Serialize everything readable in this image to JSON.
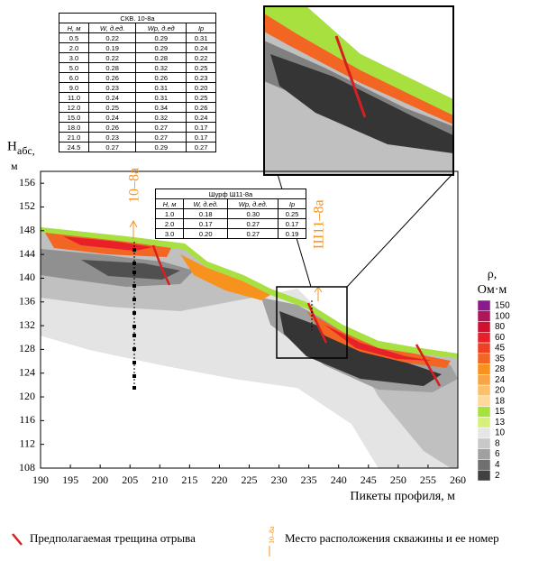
{
  "chart_data": {
    "type": "contour",
    "y_label": "H",
    "y_label_sub": "абс,",
    "y_label_unit": "м",
    "x_label": "Пикеты профиля, м",
    "xlim": [
      190,
      260
    ],
    "xticks": [
      190,
      195,
      200,
      205,
      210,
      215,
      220,
      225,
      230,
      235,
      240,
      245,
      250,
      255,
      260
    ],
    "ylim": [
      108,
      158
    ],
    "yticks": [
      108,
      112,
      116,
      120,
      124,
      128,
      132,
      136,
      140,
      144,
      148,
      152,
      156
    ],
    "colorbar": {
      "title": "ρ,",
      "unit": "Ом·м",
      "levels": [
        150,
        100,
        80,
        60,
        45,
        35,
        28,
        24,
        20,
        18,
        15,
        13,
        10,
        8,
        6,
        4,
        2
      ],
      "colors": [
        "#8b1a8b",
        "#b0155a",
        "#d01030",
        "#e8202a",
        "#ef4023",
        "#f26522",
        "#f7921e",
        "#f9a545",
        "#fbc068",
        "#fdd99a",
        "#a8e040",
        "#d6f07a",
        "#e6e6e6",
        "#c8c8c8",
        "#a0a0a0",
        "#707070",
        "#404040"
      ]
    },
    "wells": [
      {
        "label": "10–8а"
      },
      {
        "label": "Ш11–8а"
      }
    ]
  },
  "tables": [
    {
      "title": "СКВ. 10-8а",
      "header": [
        "H, м",
        "W, д.ед.",
        "Wp, д.ед",
        "Ip"
      ],
      "rows": [
        [
          "0.5",
          "0.22",
          "0.29",
          "0.31"
        ],
        [
          "2.0",
          "0.19",
          "0.29",
          "0.24"
        ],
        [
          "3.0",
          "0.22",
          "0.28",
          "0.22"
        ],
        [
          "5.0",
          "0.28",
          "0.32",
          "0.25"
        ],
        [
          "6.0",
          "0.26",
          "0.26",
          "0.23"
        ],
        [
          "9.0",
          "0.23",
          "0.31",
          "0.20"
        ],
        [
          "11.0",
          "0.24",
          "0.31",
          "0.25"
        ],
        [
          "12.0",
          "0.25",
          "0.34",
          "0.26"
        ],
        [
          "15.0",
          "0.24",
          "0.32",
          "0.24"
        ],
        [
          "18.0",
          "0.26",
          "0.27",
          "0.17"
        ],
        [
          "21.0",
          "0.23",
          "0.27",
          "0.17"
        ],
        [
          "24.5",
          "0.27",
          "0.29",
          "0.27"
        ]
      ]
    },
    {
      "title": "Шурф  Ш11-8а",
      "header": [
        "H, м",
        "W, д.ед.",
        "Wp, д.ед.",
        "Ip"
      ],
      "rows": [
        [
          "1.0",
          "0.18",
          "0.30",
          "0.25"
        ],
        [
          "2.0",
          "0.17",
          "0.27",
          "0.17"
        ],
        [
          "3.0",
          "0.20",
          "0.27",
          "0.19"
        ]
      ]
    }
  ],
  "legend": {
    "items": [
      "Предполагаемая трещина отрыва",
      "Место расположения  скважины и ее номер"
    ],
    "icon_label": "10–8а"
  }
}
